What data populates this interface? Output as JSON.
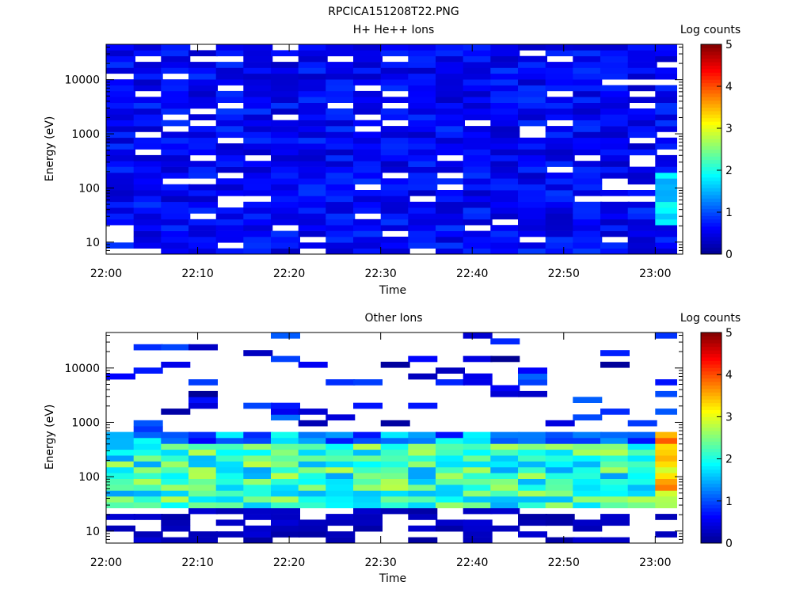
{
  "figure_title": "RPCICA151208T22.PNG",
  "colors": {
    "colormap": [
      "#00008f",
      "#0000ff",
      "#0080ff",
      "#00ffff",
      "#80ff80",
      "#ffff00",
      "#ff8000",
      "#ff0000",
      "#800000"
    ]
  },
  "chart_data": [
    {
      "type": "heatmap",
      "title": "H+ He++ Ions",
      "xlabel": "Time",
      "ylabel": "Energy (eV)",
      "x_ticks": [
        "22:00",
        "22:10",
        "22:20",
        "22:30",
        "22:40",
        "22:50",
        "23:00"
      ],
      "xlim": [
        "22:00",
        "23:03"
      ],
      "y_ticks": [
        "10",
        "100",
        "1000",
        "10000"
      ],
      "y_scale": "log",
      "ylim": [
        6,
        45000
      ],
      "colorbar": {
        "label": "Log counts",
        "ticks": [
          "0",
          "1",
          "2",
          "3",
          "4",
          "5"
        ],
        "range": [
          0,
          5
        ]
      },
      "time_columns": [
        "22:00",
        "22:03",
        "22:06",
        "22:09",
        "22:12",
        "22:15",
        "22:18",
        "22:21",
        "22:24",
        "22:27",
        "22:30",
        "22:33",
        "22:36",
        "22:39",
        "22:42",
        "22:45",
        "22:48",
        "22:51",
        "22:54",
        "22:57",
        "23:00"
      ],
      "energy_bins": {
        "count": 36,
        "min_eV": 6,
        "max_eV": 45000
      },
      "description_of_values": "log10 counts, mostly 0.3-0.9 across all energies; at 23:00 low energies (20-150 eV) reach 1.5-2.0; above ~23:02 no data",
      "typical_level": 0.6,
      "peak": {
        "time": "23:00",
        "energy_eV": 50,
        "log_counts": 2.0
      }
    },
    {
      "type": "heatmap",
      "title": "Other Ions",
      "xlabel": "Time",
      "ylabel": "Energy (eV)",
      "x_ticks": [
        "22:00",
        "22:10",
        "22:20",
        "22:30",
        "22:40",
        "22:50",
        "23:00"
      ],
      "xlim": [
        "22:00",
        "23:03"
      ],
      "y_ticks": [
        "10",
        "100",
        "1000",
        "10000"
      ],
      "y_scale": "log",
      "ylim": [
        6,
        45000
      ],
      "colorbar": {
        "label": "Log counts",
        "ticks": [
          "0",
          "1",
          "2",
          "3",
          "4",
          "5"
        ],
        "range": [
          0,
          5
        ]
      },
      "time_columns": [
        "22:00",
        "22:03",
        "22:06",
        "22:09",
        "22:12",
        "22:15",
        "22:18",
        "22:21",
        "22:24",
        "22:27",
        "22:30",
        "22:33",
        "22:36",
        "22:39",
        "22:42",
        "22:45",
        "22:48",
        "22:51",
        "22:54",
        "22:57",
        "23:00"
      ],
      "energy_bins": {
        "count": 36,
        "min_eV": 6,
        "max_eV": 45000
      },
      "description_of_values": "main band 25-700 eV with log counts 1.5-3.0; sparse weak counts (0-1) above 1000 eV; low-energy (6-20 eV) weak; at 23:00 enhancement 30-300 eV up to ~4",
      "band_eV": [
        25,
        700
      ],
      "peak": {
        "time": "23:00",
        "energy_eV": 45,
        "log_counts": 4.0
      }
    }
  ]
}
